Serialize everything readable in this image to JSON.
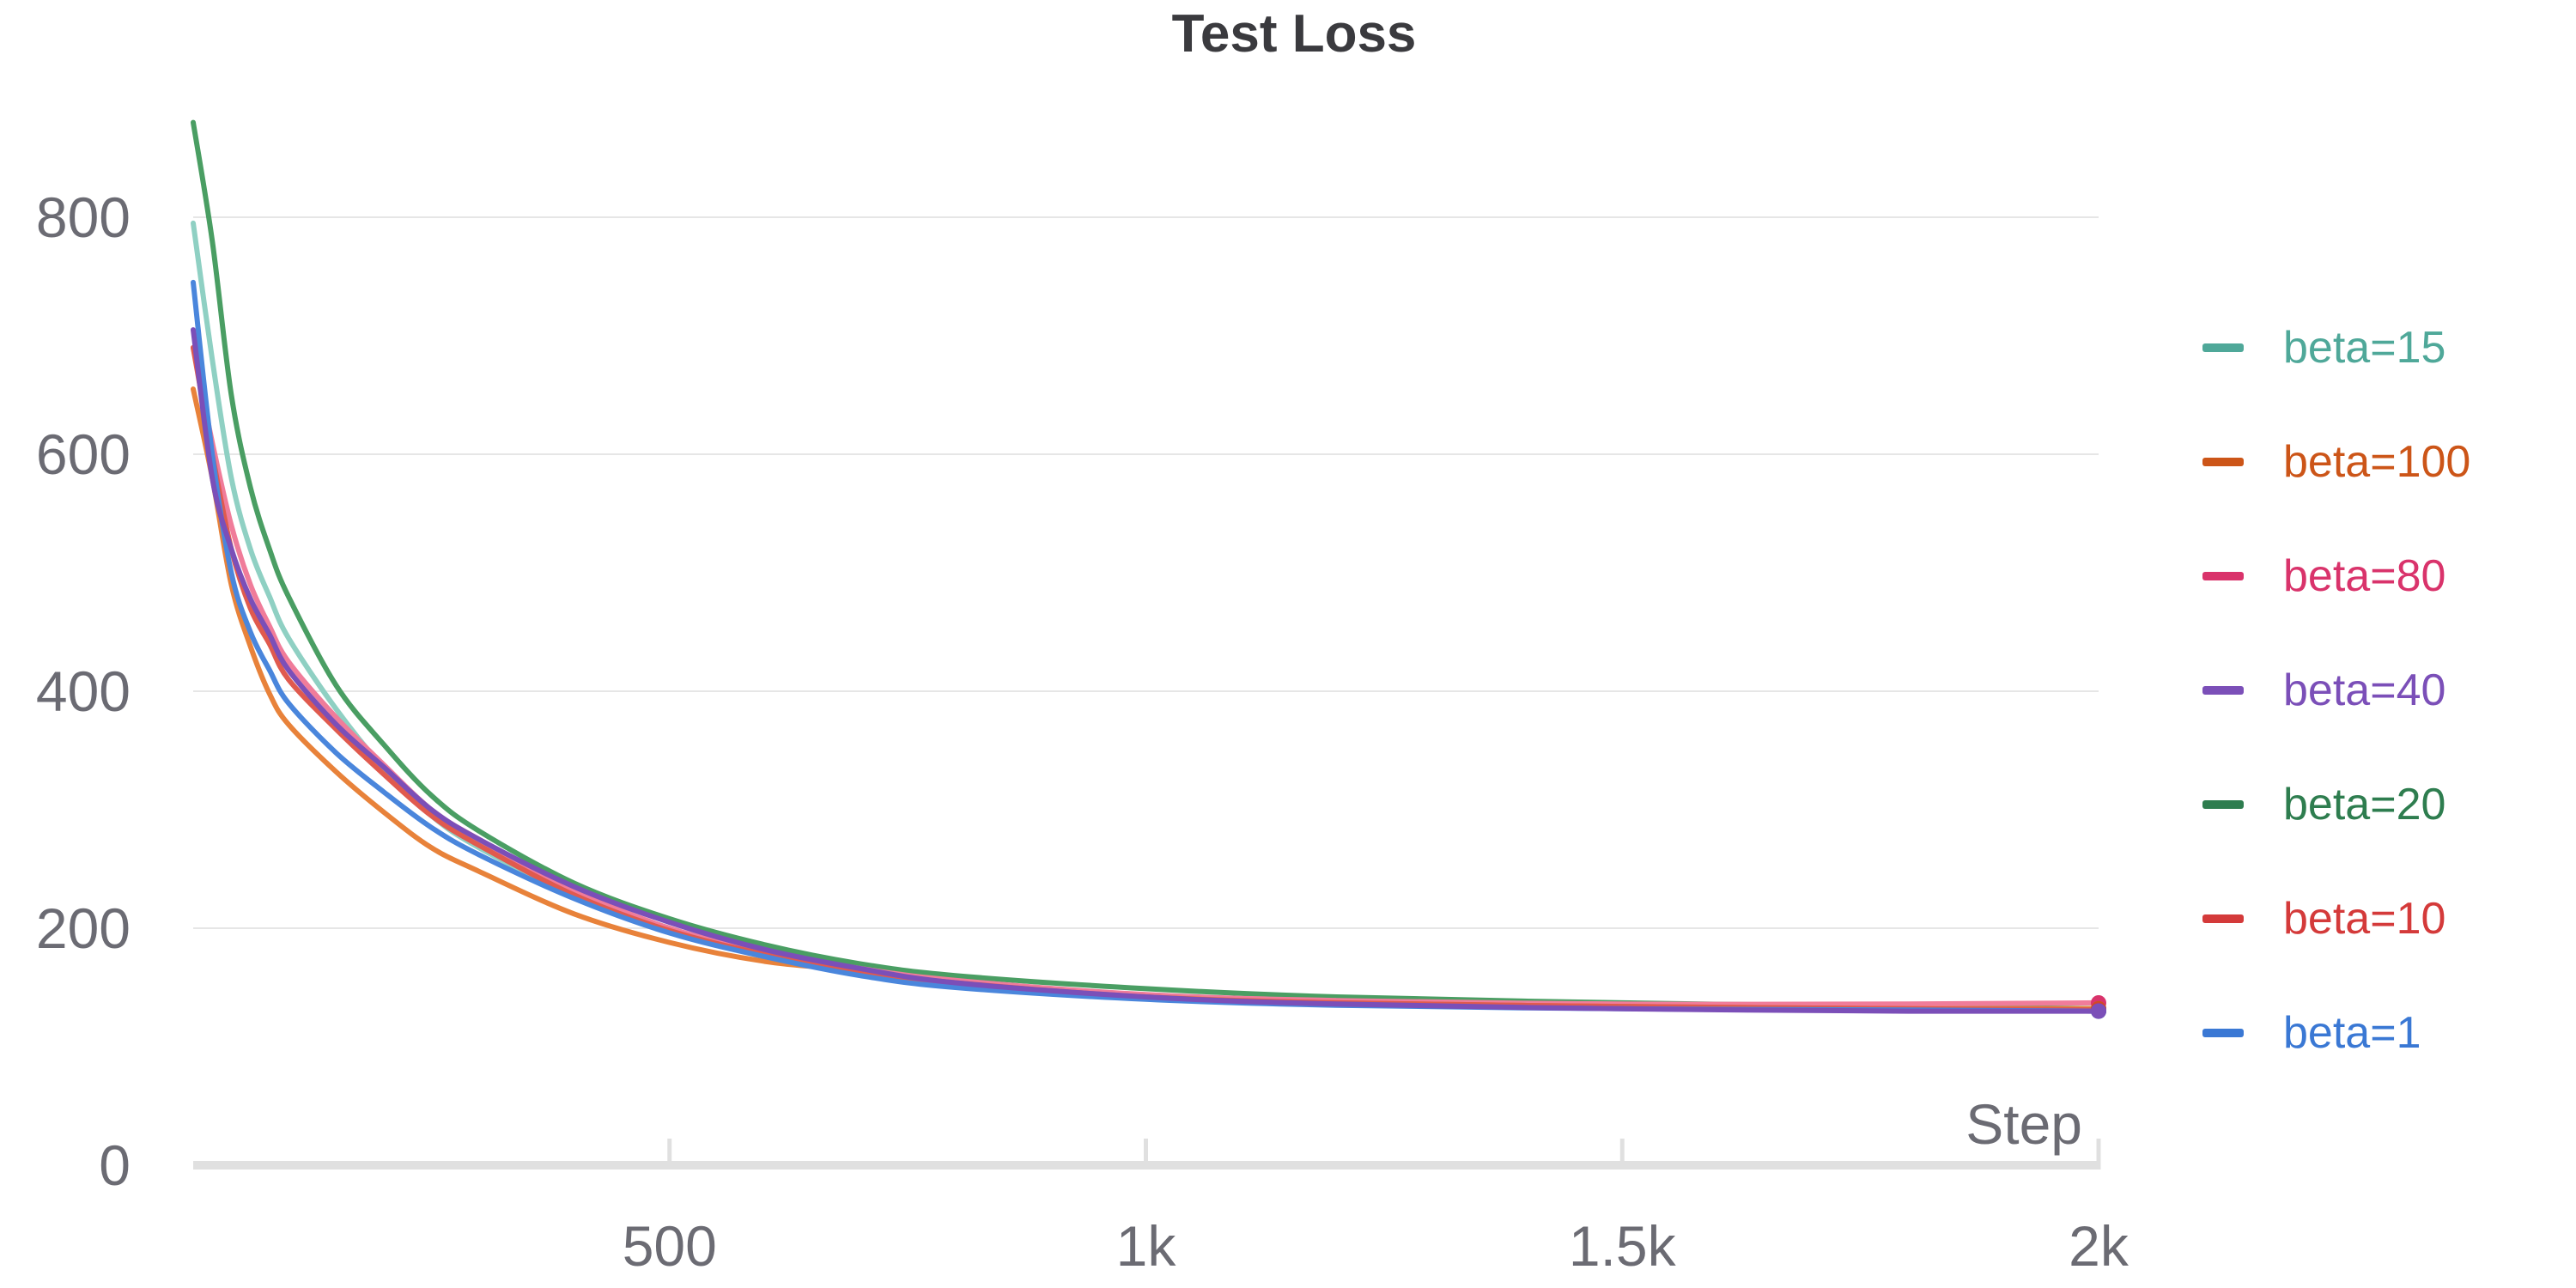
{
  "chart_data": {
    "type": "line",
    "title": "Test Loss",
    "xlabel": "Step",
    "ylabel": "",
    "xlim": [
      0,
      2000
    ],
    "ylim": [
      0,
      900
    ],
    "yticks": [
      0,
      200,
      400,
      600,
      800
    ],
    "ytick_labels": [
      "0",
      "200",
      "400",
      "600",
      "800"
    ],
    "xticks": [
      500,
      1000,
      1500,
      2000
    ],
    "xtick_labels": [
      "500",
      "1k",
      "1.5k",
      "2k"
    ],
    "grid": true,
    "legend_position": "right",
    "series": [
      {
        "name": "beta=15",
        "color": "#4fa899",
        "line_color": "#8fd0c3",
        "x": [
          0,
          20,
          40,
          60,
          80,
          100,
          150,
          200,
          250,
          300,
          400,
          500,
          600,
          700,
          800,
          1000,
          1200,
          1500,
          1800,
          2000
        ],
        "y": [
          795,
          680,
          580,
          520,
          480,
          445,
          385,
          335,
          295,
          268,
          228,
          200,
          177,
          162,
          152,
          142,
          137,
          133,
          131,
          130
        ]
      },
      {
        "name": "beta=100",
        "color": "#cc5518",
        "line_color": "#e8823a",
        "x": [
          0,
          20,
          40,
          60,
          80,
          100,
          150,
          200,
          250,
          300,
          400,
          500,
          600,
          700,
          800,
          1000,
          1200,
          1500,
          1800,
          2000
        ],
        "y": [
          655,
          580,
          490,
          438,
          398,
          372,
          332,
          298,
          268,
          248,
          212,
          188,
          172,
          164,
          152,
          142,
          137,
          134,
          132,
          132
        ]
      },
      {
        "name": "beta=80",
        "color": "#d9336b",
        "line_color": "#f07c9a",
        "x": [
          0,
          20,
          40,
          60,
          80,
          100,
          150,
          200,
          250,
          300,
          400,
          500,
          600,
          700,
          800,
          1000,
          1200,
          1500,
          1800,
          2000
        ],
        "y": [
          690,
          610,
          540,
          490,
          455,
          425,
          378,
          338,
          300,
          275,
          232,
          200,
          180,
          166,
          156,
          144,
          139,
          136,
          136,
          137
        ]
      },
      {
        "name": "beta=40",
        "color": "#7b4fb8",
        "line_color": "#7b4fb8",
        "x": [
          0,
          20,
          40,
          60,
          80,
          100,
          150,
          200,
          250,
          300,
          400,
          500,
          600,
          700,
          800,
          1000,
          1200,
          1500,
          1800,
          2000
        ],
        "y": [
          705,
          580,
          520,
          478,
          448,
          418,
          372,
          336,
          300,
          275,
          235,
          205,
          182,
          166,
          154,
          142,
          136,
          132,
          130,
          130
        ]
      },
      {
        "name": "beta=20",
        "color": "#2e7d4f",
        "line_color": "#4a9e63",
        "x": [
          0,
          20,
          40,
          60,
          80,
          100,
          150,
          200,
          250,
          300,
          400,
          500,
          600,
          700,
          800,
          1000,
          1200,
          1500,
          1800,
          2000
        ],
        "y": [
          880,
          780,
          650,
          572,
          520,
          480,
          405,
          355,
          312,
          282,
          238,
          208,
          186,
          170,
          160,
          149,
          142,
          137,
          134,
          132
        ]
      },
      {
        "name": "beta=10",
        "color": "#d43a3a",
        "line_color": "#e05a4e",
        "x": [
          0,
          20,
          40,
          60,
          80,
          100,
          150,
          200,
          250,
          300,
          400,
          500,
          600,
          700,
          800,
          1000,
          1200,
          1500,
          1800,
          2000
        ],
        "y": [
          690,
          600,
          520,
          470,
          440,
          410,
          368,
          330,
          295,
          270,
          228,
          198,
          178,
          164,
          154,
          142,
          137,
          134,
          132,
          131
        ]
      },
      {
        "name": "beta=1",
        "color": "#3a78d4",
        "line_color": "#4a86dc",
        "x": [
          0,
          20,
          40,
          60,
          80,
          100,
          150,
          200,
          250,
          300,
          400,
          500,
          600,
          700,
          800,
          1000,
          1200,
          1500,
          1800,
          2000
        ],
        "y": [
          745,
          600,
          500,
          450,
          418,
          390,
          348,
          315,
          285,
          262,
          225,
          196,
          176,
          160,
          150,
          140,
          135,
          132,
          131,
          130
        ]
      }
    ]
  }
}
